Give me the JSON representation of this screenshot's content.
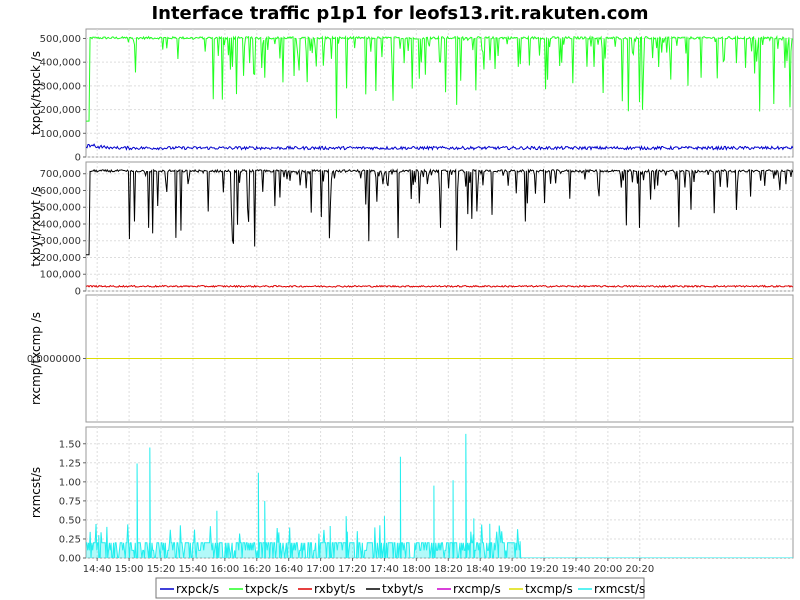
{
  "colors": {
    "rxpck": "#0000cc",
    "txpck": "#22ff22",
    "rxbyt": "#dd0000",
    "txbyt": "#000000",
    "rxcmp": "#cc00cc",
    "txcmp": "#dddd00",
    "rxmcst": "#22eeee",
    "grid": "#dddddd",
    "frame": "#999999"
  },
  "chart_data": {
    "type": "line",
    "title": "Interface traffic p1p1 for leofs13.rit.rakuten.com",
    "x_tick_labels": [
      "14:40",
      "15:00",
      "15:20",
      "15:40",
      "16:00",
      "16:20",
      "16:40",
      "17:00",
      "17:20",
      "17:40",
      "18:00",
      "18:20",
      "18:40",
      "19:00",
      "19:20",
      "19:40",
      "20:00",
      "20:20"
    ],
    "x_range_minutes": [
      0,
      443
    ],
    "x_first_tick_offset_minutes": 7,
    "panels": [
      {
        "ylabel": "txpck/txpck /s",
        "ylim": [
          0,
          540000
        ],
        "y_ticks": [
          "0",
          "100,000",
          "200,000",
          "300,000",
          "400,000",
          "500,000"
        ],
        "y_tick_values": [
          0,
          100000,
          200000,
          300000,
          400000,
          500000
        ],
        "series": [
          {
            "name": "txpck/s",
            "key": "txpck",
            "approx_level": 505000,
            "dip_min": 120000,
            "active_until_minute": 443
          },
          {
            "name": "rxpck/s",
            "key": "rxpck",
            "approx_level": 38000,
            "dip_min": 25000,
            "active_until_minute": 443
          }
        ]
      },
      {
        "ylabel": "txbyt/rxbyt /s",
        "ylim": [
          0,
          770000
        ],
        "y_ticks": [
          "0",
          "100,000",
          "200,000",
          "300,000",
          "400,000",
          "500,000",
          "600,000",
          "700,000"
        ],
        "y_tick_values": [
          0,
          100000,
          200000,
          300000,
          400000,
          500000,
          600000,
          700000
        ],
        "series": [
          {
            "name": "txbyt/s",
            "key": "txbyt",
            "approx_level": 720000,
            "dip_min": 180000,
            "active_until_minute": 443
          },
          {
            "name": "rxbyt/s",
            "key": "rxbyt",
            "approx_level": 28000,
            "dip_min": 18000,
            "active_until_minute": 443
          }
        ]
      },
      {
        "ylabel": "rxcmp/txcmp /s",
        "ylim": [
          -1,
          1
        ],
        "y_ticks": [
          "0.0000000"
        ],
        "y_tick_values": [
          0
        ],
        "series": [
          {
            "name": "rxcmp/s",
            "key": "rxcmp",
            "approx_level": 0
          },
          {
            "name": "txcmp/s",
            "key": "txcmp",
            "approx_level": 0
          }
        ]
      },
      {
        "ylabel": "rxmcst/s",
        "ylim": [
          0,
          1.72
        ],
        "y_ticks": [
          "0.00",
          "0.25",
          "0.50",
          "0.75",
          "1.00",
          "1.25",
          "1.50"
        ],
        "y_tick_values": [
          0,
          0.25,
          0.5,
          0.75,
          1.0,
          1.25,
          1.5
        ],
        "series": [
          {
            "name": "rxmcst/s",
            "key": "rxmcst",
            "approx_level": 0.2,
            "active_until_minute": 272,
            "spikes": [
              [
                8,
                0.3
              ],
              [
                32,
                1.24
              ],
              [
                40,
                1.45
              ],
              [
                82,
                0.62
              ],
              [
                108,
                1.12
              ],
              [
                112,
                0.75
              ],
              [
                153,
                0.42
              ],
              [
                163,
                0.55
              ],
              [
                187,
                0.55
              ],
              [
                197,
                1.33
              ],
              [
                218,
                0.95
              ],
              [
                230,
                1.02
              ],
              [
                238,
                1.63
              ],
              [
                243,
                0.52
              ],
              [
                253,
                0.45
              ],
              [
                272,
                0.22
              ]
            ]
          }
        ]
      }
    ],
    "legend": [
      {
        "label": "rxpck/s",
        "key": "rxpck"
      },
      {
        "label": "txpck/s",
        "key": "txpck"
      },
      {
        "label": "rxbyt/s",
        "key": "rxbyt"
      },
      {
        "label": "txbyt/s",
        "key": "txbyt"
      },
      {
        "label": "rxcmp/s",
        "key": "rxcmp"
      },
      {
        "label": "txcmp/s",
        "key": "txcmp"
      },
      {
        "label": "rxmcst/s",
        "key": "rxmcst"
      }
    ]
  }
}
